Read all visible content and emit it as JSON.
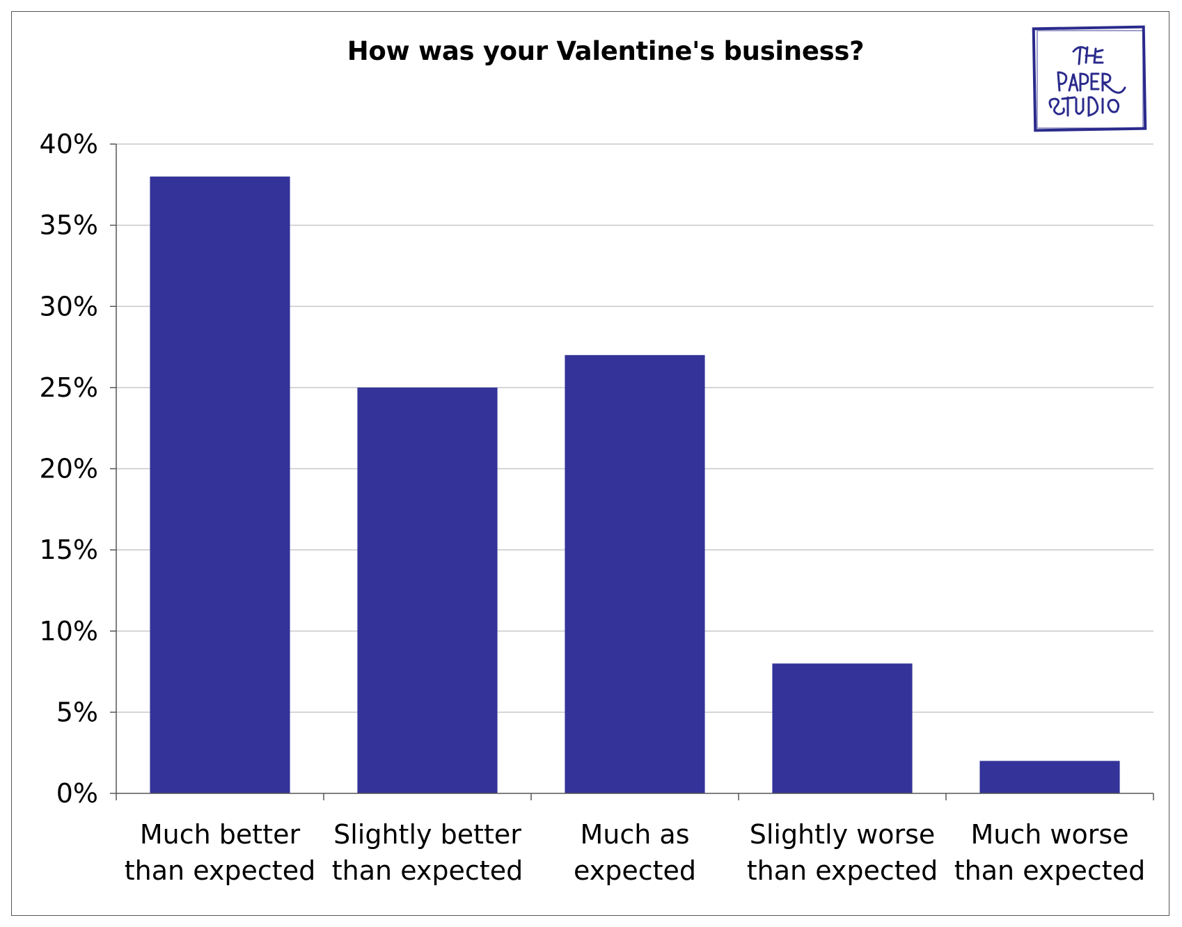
{
  "colors": {
    "bar": "#333399",
    "gridline": "#c8c8c8",
    "axis": "#555555",
    "logo": "#2a2a8c"
  },
  "logo": {
    "text": "THE PAPER STUDIO",
    "icon": "paper-studio-logo-icon"
  },
  "chart_data": {
    "type": "bar",
    "title": "How was your Valentine's business?",
    "categories": [
      "Much better than expected",
      "Slightly better than expected",
      "Much as expected",
      "Slightly worse than expected",
      "Much worse than expected"
    ],
    "category_lines": [
      [
        "Much better",
        "than expected"
      ],
      [
        "Slightly better",
        "than expected"
      ],
      [
        "Much as",
        "expected"
      ],
      [
        "Slightly worse",
        "than expected"
      ],
      [
        "Much worse",
        "than expected"
      ]
    ],
    "values": [
      38,
      25,
      27,
      8,
      2
    ],
    "unit": "%",
    "ylim": [
      0,
      40
    ],
    "y_ticks": [
      0,
      5,
      10,
      15,
      20,
      25,
      30,
      35,
      40
    ],
    "y_tick_labels": [
      "0%",
      "5%",
      "10%",
      "15%",
      "20%",
      "25%",
      "30%",
      "35%",
      "40%"
    ],
    "xlabel": "",
    "ylabel": "",
    "grid": true,
    "legend": "none"
  }
}
